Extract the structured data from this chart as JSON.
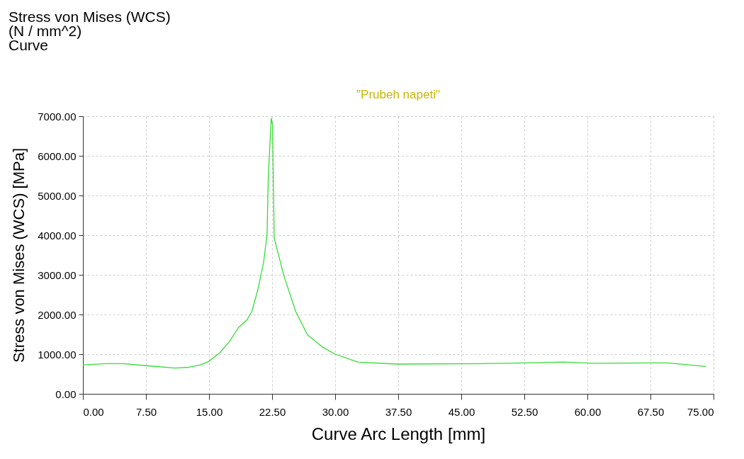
{
  "chart_data": {
    "type": "line",
    "title": "Stress von Mises (WCS)\n(N / mm^2)\nCurve",
    "subtitle": "\"Prubeh napeti\"",
    "xlabel": "Curve Arc Length [mm]",
    "ylabel": "Stress von Mises (WCS) [MPa]",
    "xlim": [
      0,
      75
    ],
    "ylim": [
      0,
      7000
    ],
    "xticks": [
      {
        "value": 0,
        "label": "0.00"
      },
      {
        "value": 7.5,
        "label": "7.50"
      },
      {
        "value": 15,
        "label": "15.00"
      },
      {
        "value": 22.5,
        "label": "22.50"
      },
      {
        "value": 30,
        "label": "30.00"
      },
      {
        "value": 37.5,
        "label": "37.50"
      },
      {
        "value": 45,
        "label": "45.00"
      },
      {
        "value": 52.5,
        "label": "52.50"
      },
      {
        "value": 60,
        "label": "60.00"
      },
      {
        "value": 67.5,
        "label": "67.50"
      },
      {
        "value": 75,
        "label": "75.00"
      }
    ],
    "yticks": [
      {
        "value": 0,
        "label": "0.00"
      },
      {
        "value": 1000,
        "label": "1000.00"
      },
      {
        "value": 2000,
        "label": "2000.00"
      },
      {
        "value": 3000,
        "label": "3000.00"
      },
      {
        "value": 4000,
        "label": "4000.00"
      },
      {
        "value": 5000,
        "label": "5000.00"
      },
      {
        "value": 6000,
        "label": "6000.00"
      },
      {
        "value": 7000,
        "label": "7000.00"
      }
    ],
    "grid": true,
    "series": [
      {
        "color": "#33dd33",
        "x": [
          0,
          2.8,
          4.8,
          7.5,
          11.0,
          12.6,
          14.0,
          15.0,
          16.3,
          17.4,
          18.5,
          19.5,
          20.1,
          20.8,
          21.5,
          21.9,
          22.05,
          22.4,
          22.55,
          22.75,
          23.9,
          25.3,
          26.7,
          28.4,
          30.0,
          32.7,
          37.4,
          47.4,
          52.4,
          57.1,
          60.8,
          67.1,
          69.6,
          74.1
        ],
        "values": [
          730,
          760,
          760,
          710,
          650,
          670,
          730,
          820,
          1040,
          1310,
          1670,
          1860,
          2080,
          2620,
          3330,
          4020,
          5480,
          6950,
          6790,
          3930,
          2980,
          2080,
          1490,
          1190,
          1000,
          800,
          750,
          760,
          780,
          800,
          770,
          780,
          780,
          690
        ]
      }
    ]
  }
}
